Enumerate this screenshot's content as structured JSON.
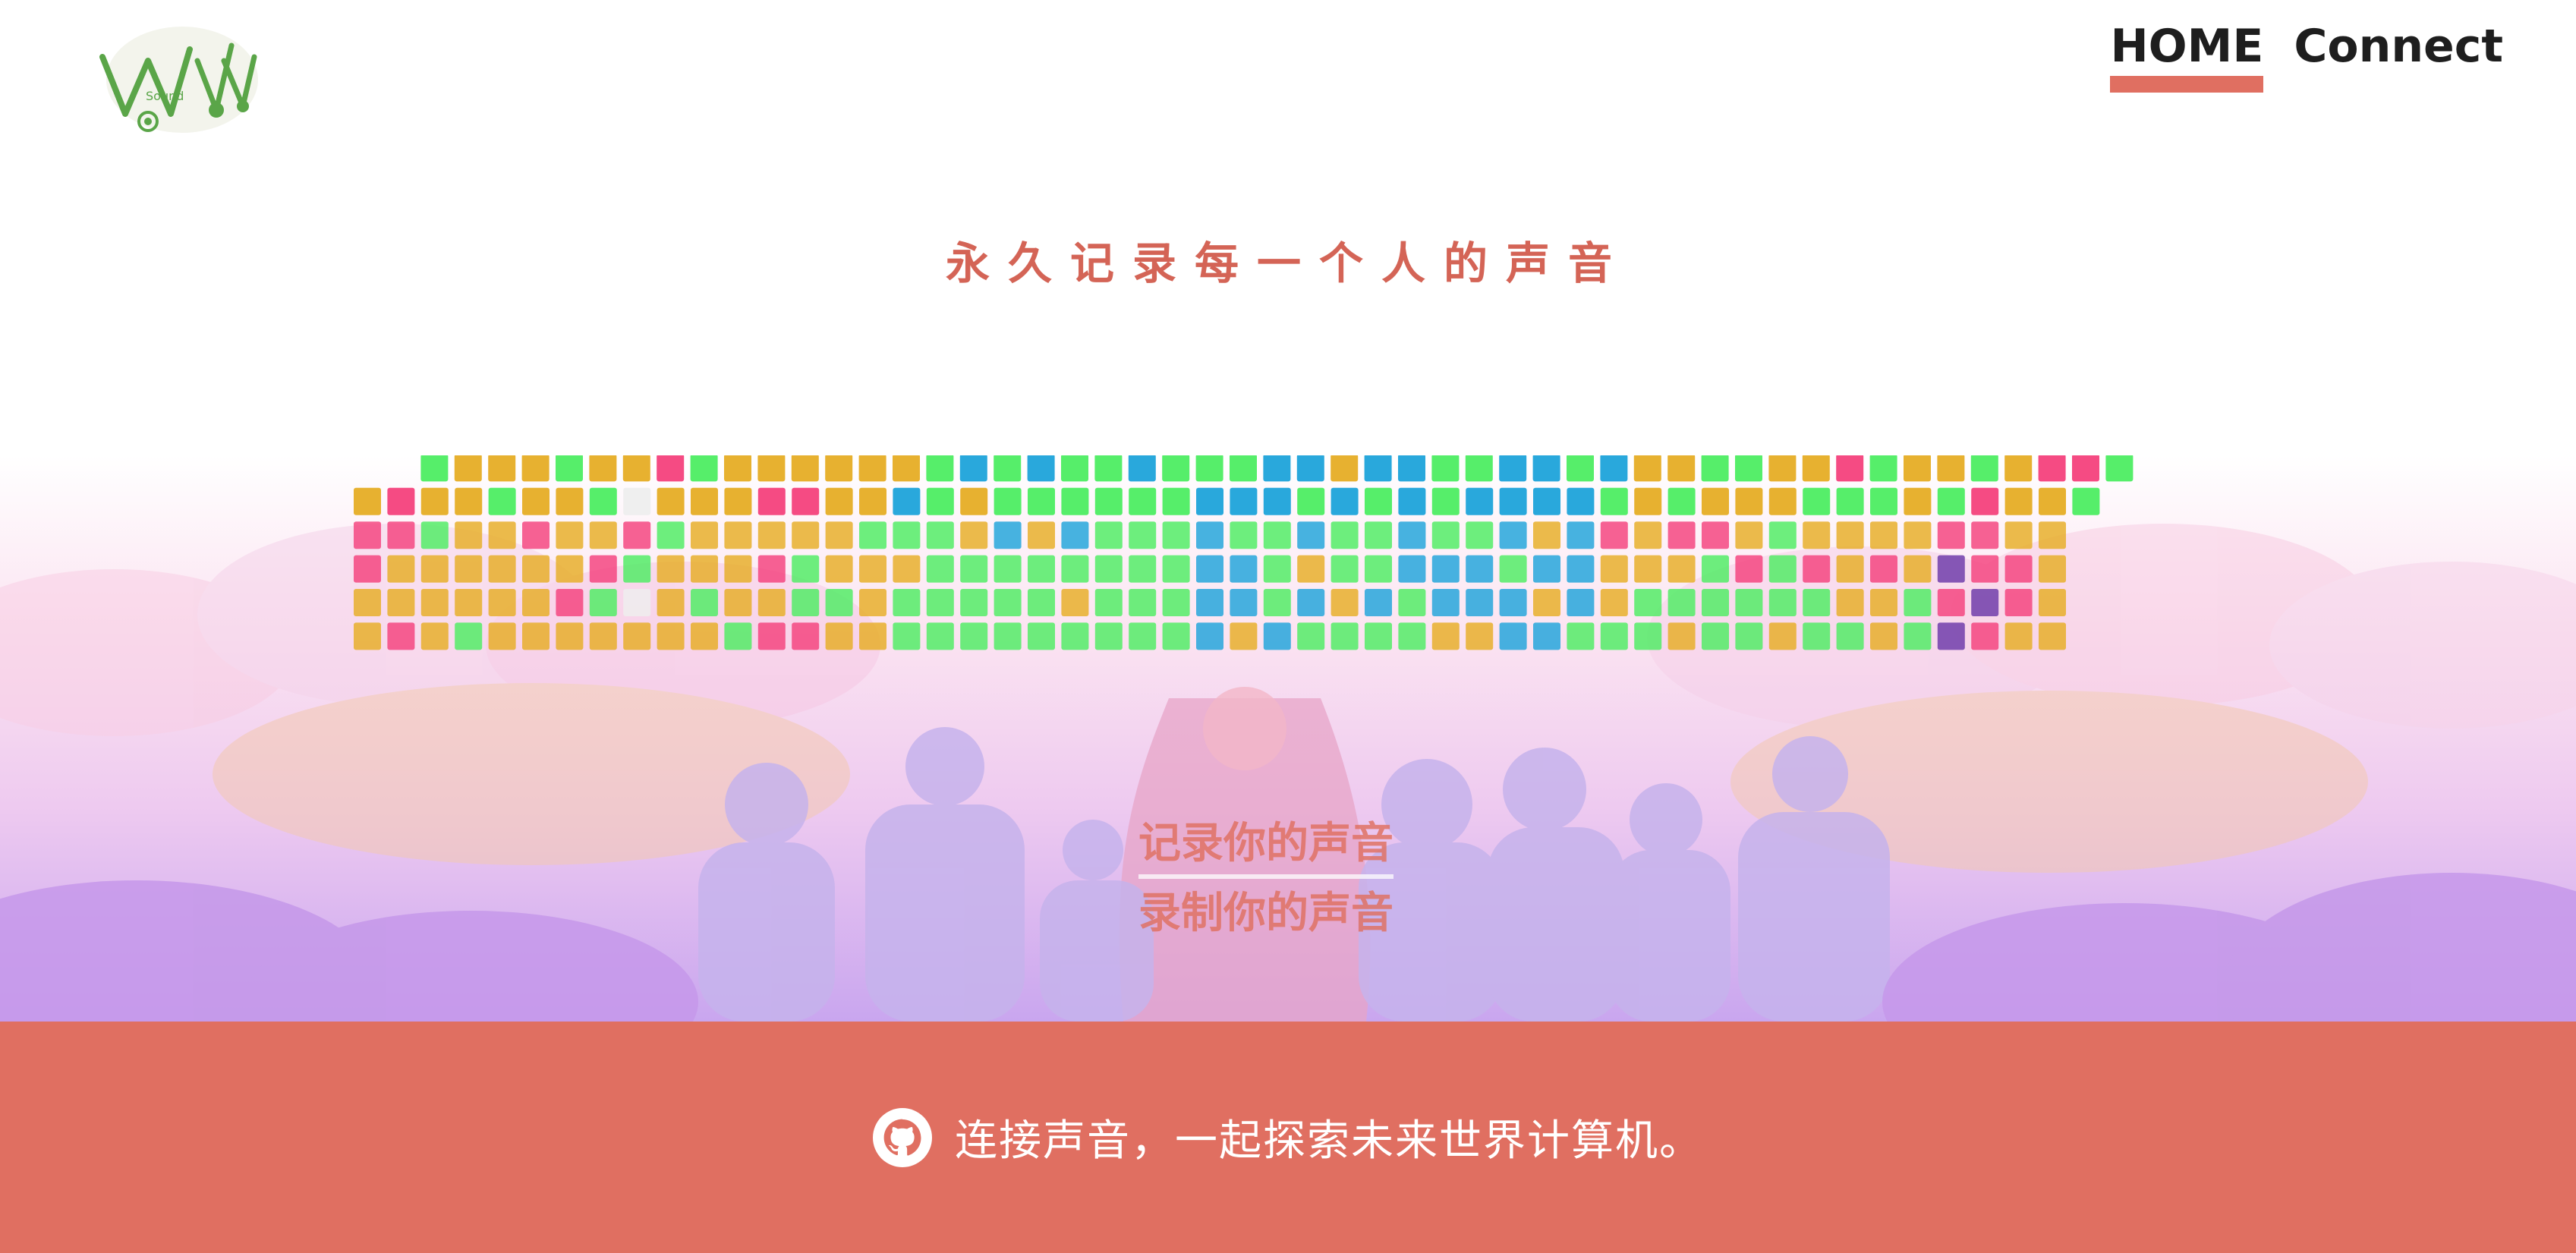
{
  "header": {
    "logo_text": "Sound",
    "nav": [
      {
        "label": "HOME",
        "active": true
      },
      {
        "label": "Connect",
        "active": false
      }
    ]
  },
  "hero": {
    "title": "永久记录每一个人的声音"
  },
  "actions": {
    "record_link": "记录你的声音",
    "capture_link": "录制你的声音"
  },
  "footer": {
    "text": "连接声音，一起探索未来世界计算机。",
    "icon": "github-icon"
  },
  "colors": {
    "accent": "#e06f61",
    "title": "#d46456",
    "yellow": "#e6ad25",
    "pink": "#f4417c",
    "green": "#4ded62",
    "blue": "#1ea3da",
    "purple": "#6b38a8",
    "white": "#eeeeee"
  }
}
